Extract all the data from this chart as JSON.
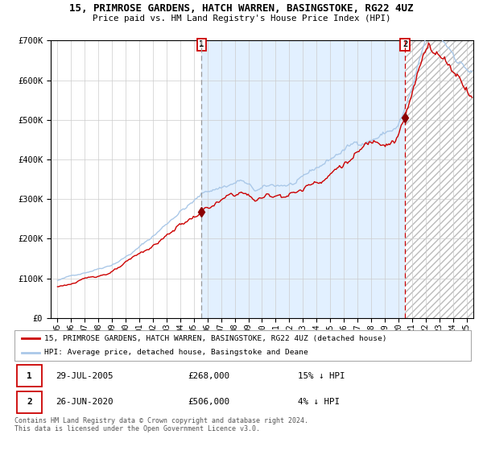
{
  "title": "15, PRIMROSE GARDENS, HATCH WARREN, BASINGSTOKE, RG22 4UZ",
  "subtitle": "Price paid vs. HM Land Registry's House Price Index (HPI)",
  "legend_line1": "15, PRIMROSE GARDENS, HATCH WARREN, BASINGSTOKE, RG22 4UZ (detached house)",
  "legend_line2": "HPI: Average price, detached house, Basingstoke and Deane",
  "annotation1_label": "1",
  "annotation1_date": "29-JUL-2005",
  "annotation1_price": "£268,000",
  "annotation1_pct": "15% ↓ HPI",
  "annotation1_year": 2005.57,
  "annotation1_value": 268000,
  "annotation2_label": "2",
  "annotation2_date": "26-JUN-2020",
  "annotation2_price": "£506,000",
  "annotation2_pct": "4% ↓ HPI",
  "annotation2_year": 2020.49,
  "annotation2_value": 506000,
  "hpi_color": "#aac8e8",
  "price_color": "#cc0000",
  "marker_color": "#8b0000",
  "vline1_color": "#999999",
  "vline2_color": "#cc0000",
  "bg_shaded_color": "#ddeeff",
  "ymin": 0,
  "ymax": 700000,
  "yticks": [
    0,
    100000,
    200000,
    300000,
    400000,
    500000,
    600000,
    700000
  ],
  "ytick_labels": [
    "£0",
    "£100K",
    "£200K",
    "£300K",
    "£400K",
    "£500K",
    "£600K",
    "£700K"
  ],
  "xmin": 1994.5,
  "xmax": 2025.5,
  "xtick_years": [
    1995,
    1996,
    1997,
    1998,
    1999,
    2000,
    2001,
    2002,
    2003,
    2004,
    2005,
    2006,
    2007,
    2008,
    2009,
    2010,
    2011,
    2012,
    2013,
    2014,
    2015,
    2016,
    2017,
    2018,
    2019,
    2020,
    2021,
    2022,
    2023,
    2024,
    2025
  ],
  "footnote": "Contains HM Land Registry data © Crown copyright and database right 2024.\nThis data is licensed under the Open Government Licence v3.0."
}
